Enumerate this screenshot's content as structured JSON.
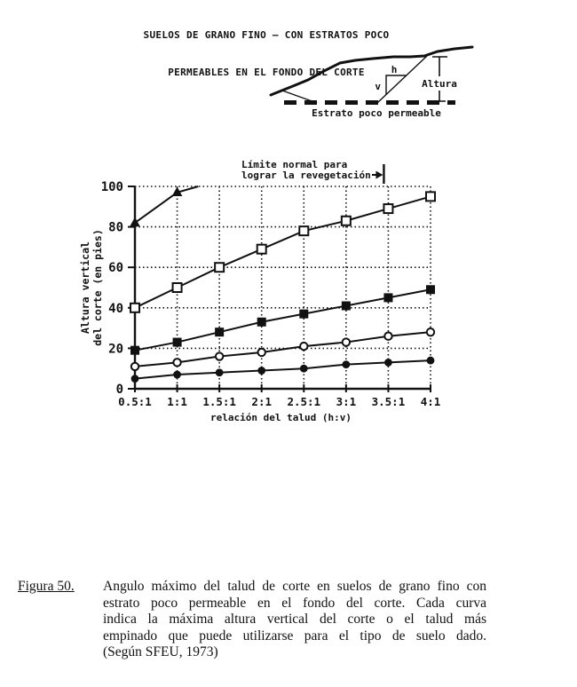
{
  "title": {
    "line1": "SUELOS DE GRANO FINO – CON ESTRATOS POCO",
    "line2": "PERMEABLES EN EL FONDO DEL CORTE"
  },
  "diagram": {
    "h_label": "h",
    "v_label": "v",
    "altura_label": "Altura",
    "estrato_label": "Estrato poco permeable"
  },
  "chart_data": {
    "type": "line",
    "xlabel": "relación del talud (h:v)",
    "ylabel_line1": "Altura vertical",
    "ylabel_line2": "del corte (en pies)",
    "x_tick_labels": [
      "0.5:1",
      "1:1",
      "1.5:1",
      "2:1",
      "2.5:1",
      "3:1",
      "3.5:1",
      "4:1"
    ],
    "x_values": [
      0.5,
      1,
      1.5,
      2,
      2.5,
      3,
      3.5,
      4
    ],
    "ylim": [
      0,
      100
    ],
    "yticks": [
      0,
      20,
      40,
      60,
      80,
      100
    ],
    "grid": true,
    "legend": "none (series distinguished by markers)",
    "annotation": {
      "line1": "Límite normal para",
      "line2": "lograr la revegetación",
      "arrow_to_x": 3.5
    },
    "series": [
      {
        "name": "curva-triangulo-relleno",
        "marker": "triangle-filled",
        "values": [
          82,
          97,
          null,
          null,
          null,
          null,
          null,
          null
        ],
        "extension": {
          "x": 1.25,
          "y": 100
        }
      },
      {
        "name": "curva-cuadrado-abierto",
        "marker": "square-open",
        "values": [
          40,
          50,
          60,
          69,
          78,
          83,
          89,
          95
        ]
      },
      {
        "name": "curva-cuadrado-relleno",
        "marker": "square-filled",
        "values": [
          19,
          23,
          28,
          33,
          37,
          41,
          45,
          49
        ]
      },
      {
        "name": "curva-circulo-abierto",
        "marker": "circle-open",
        "values": [
          11,
          13,
          16,
          18,
          21,
          23,
          26,
          28
        ]
      },
      {
        "name": "curva-circulo-relleno",
        "marker": "circle-filled",
        "values": [
          5,
          7,
          8,
          9,
          10,
          12,
          13,
          14
        ]
      }
    ]
  },
  "caption": {
    "figure_label": "Figura 50.",
    "lines": [
      "Angulo máximo del talud de corte en suelos de grano fino con",
      "estrato poco permeable en el fondo del corte.  Cada curva",
      "indica la máxima altura vertical del corte o el talud más",
      "empinado que puede utilizarse para el tipo de suelo dado.",
      "(Según SFEU, 1973)"
    ]
  },
  "colors": {
    "ink": "#111111",
    "paper": "#ffffff"
  }
}
